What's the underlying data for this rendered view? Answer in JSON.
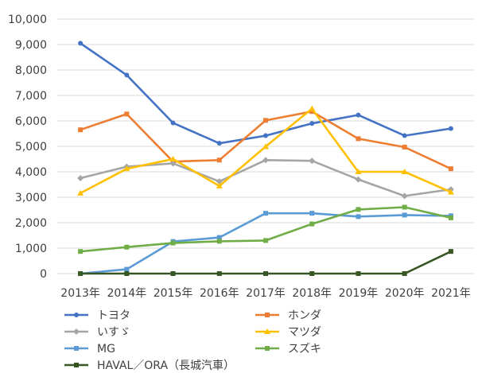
{
  "chart_data": {
    "type": "line",
    "categories": [
      "2013年",
      "2014年",
      "2015年",
      "2016年",
      "2017年",
      "2018年",
      "2019年",
      "2020年",
      "2021年"
    ],
    "ylim": [
      0,
      10000
    ],
    "yticks": [
      "0",
      "1,000",
      "2,000",
      "3,000",
      "4,000",
      "5,000",
      "6,000",
      "7,000",
      "8,000",
      "9,000",
      "10,000"
    ],
    "grid": true,
    "legend_position": "bottom",
    "series": [
      {
        "name": "トヨタ",
        "color": "#4472C4",
        "marker": "circle",
        "values": [
          9050,
          7800,
          5920,
          5120,
          5420,
          5900,
          6230,
          5420,
          5700
        ]
      },
      {
        "name": "ホンダ",
        "color": "#ED7D31",
        "marker": "square",
        "values": [
          5650,
          6270,
          4400,
          4460,
          6020,
          6370,
          5300,
          4970,
          4120
        ]
      },
      {
        "name": "いすゞ",
        "color": "#A5A5A5",
        "marker": "diamond",
        "values": [
          3750,
          4200,
          4330,
          3620,
          4460,
          4430,
          3700,
          3050,
          3310
        ]
      },
      {
        "name": "マツダ",
        "color": "#FFC000",
        "marker": "triangle",
        "values": [
          3160,
          4120,
          4500,
          3440,
          4990,
          6480,
          4000,
          4000,
          3200
        ]
      },
      {
        "name": "MG",
        "color": "#5B9BD5",
        "marker": "square",
        "values": [
          0,
          170,
          1260,
          1420,
          2370,
          2370,
          2240,
          2300,
          2270
        ]
      },
      {
        "name": "スズキ",
        "color": "#70AD47",
        "marker": "square",
        "values": [
          870,
          1040,
          1200,
          1270,
          1300,
          1950,
          2520,
          2610,
          2190
        ]
      },
      {
        "name": "HAVAL／ORA（長城汽車）",
        "color": "#375623",
        "marker": "square",
        "values": [
          0,
          0,
          0,
          0,
          0,
          0,
          0,
          0,
          870
        ]
      }
    ]
  }
}
